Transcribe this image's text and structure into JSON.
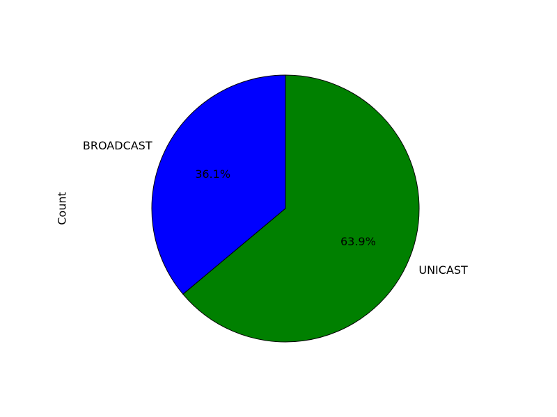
{
  "chart_data": {
    "type": "pie",
    "title": "",
    "ylabel": "Count",
    "start_angle": 90,
    "direction": "counterclockwise",
    "slices": [
      {
        "label": "BROADCAST",
        "value": 36.1,
        "pct_label": "36.1%",
        "color": "#0000ff"
      },
      {
        "label": "UNICAST",
        "value": 63.9,
        "pct_label": "63.9%",
        "color": "#008000"
      }
    ]
  }
}
